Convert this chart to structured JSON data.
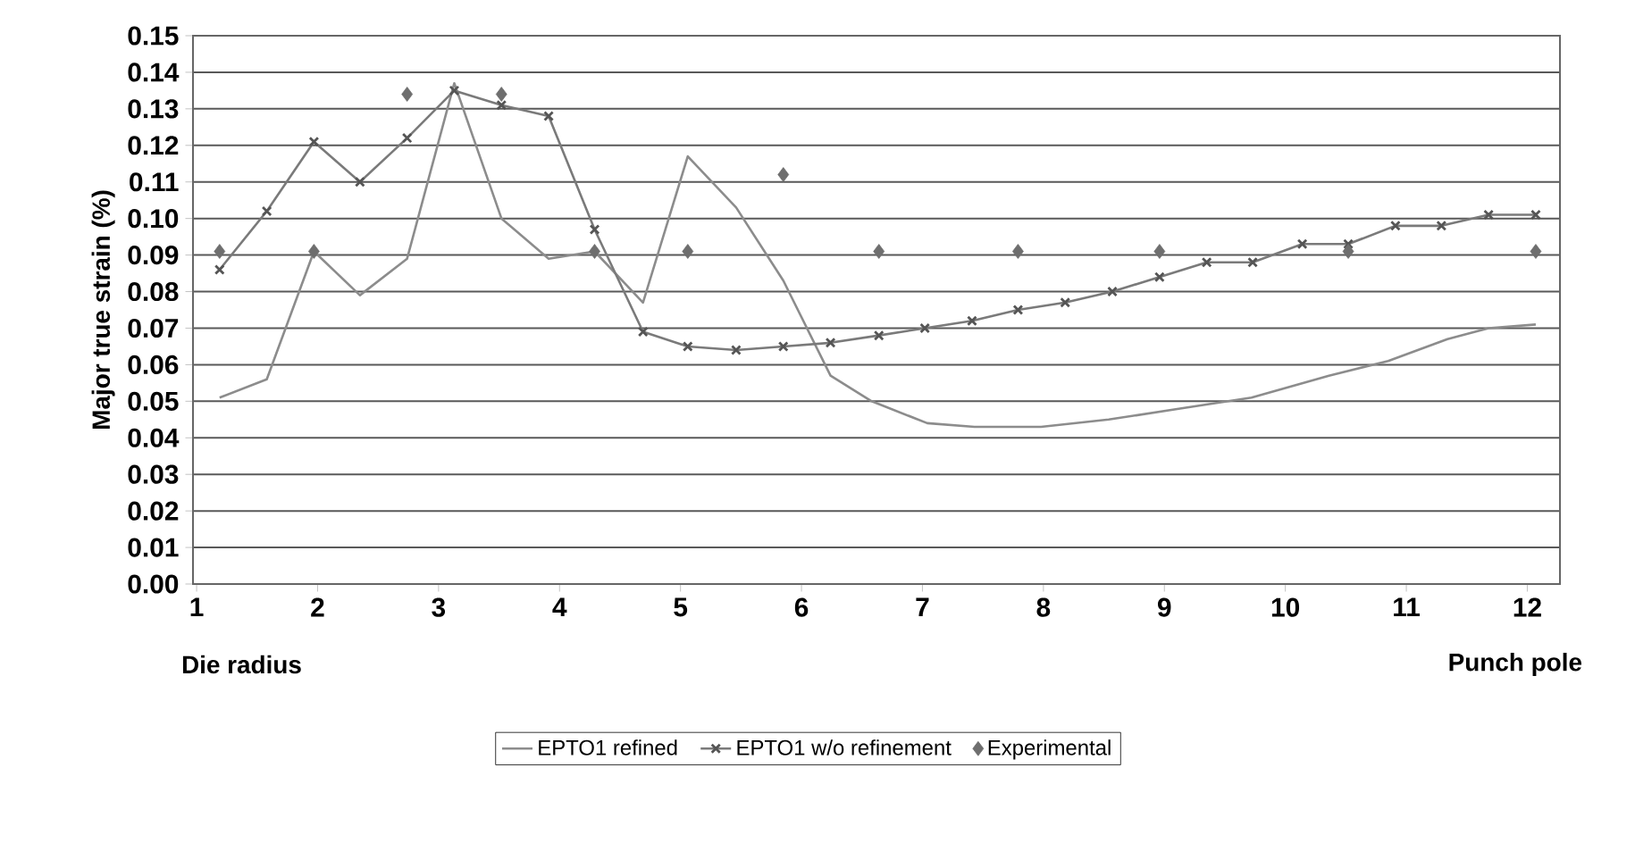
{
  "chart_data": {
    "type": "line",
    "ylabel": "Major true strain (%)",
    "xlim": [
      0.97,
      12.27
    ],
    "xticks": [
      1,
      2,
      3,
      4,
      5,
      6,
      7,
      8,
      9,
      10,
      11,
      12
    ],
    "ylim": [
      0,
      0.15
    ],
    "yticks": [
      {
        "value": 0,
        "label": "0.00"
      },
      {
        "value": 0.01,
        "label": "0.01"
      },
      {
        "value": 0.02,
        "label": "0.02"
      },
      {
        "value": 0.03,
        "label": "0.03"
      },
      {
        "value": 0.04,
        "label": "0.04"
      },
      {
        "value": 0.05,
        "label": "0.05"
      },
      {
        "value": 0.06,
        "label": "0.06"
      },
      {
        "value": 0.07,
        "label": "0.07"
      },
      {
        "value": 0.08,
        "label": "0.08"
      },
      {
        "value": 0.09,
        "label": "0.09"
      },
      {
        "value": 0.1,
        "label": "0.10"
      },
      {
        "value": 0.11,
        "label": "0.11"
      },
      {
        "value": 0.12,
        "label": "0.12"
      },
      {
        "value": 0.13,
        "label": "0.13"
      },
      {
        "value": 0.14,
        "label": "0.14"
      },
      {
        "value": 0.15,
        "label": "0.15"
      }
    ],
    "grid": "y",
    "legend": "bottom",
    "line_style": "solid",
    "annotations": [
      "Die radius",
      "Punch pole"
    ],
    "series": [
      {
        "name": "EPTO1 refined",
        "marker": "none",
        "color": "#8c8c8c",
        "x": [
          1.19,
          1.58,
          1.97,
          2.35,
          2.74,
          3.13,
          3.52,
          3.91,
          4.29,
          4.69,
          5.06,
          5.46,
          5.85,
          6.24,
          6.58,
          7.04,
          7.43,
          7.98,
          8.54,
          9.13,
          9.72,
          10.36,
          10.85,
          11.34,
          11.68,
          12.07
        ],
        "values": [
          0.051,
          0.056,
          0.091,
          0.079,
          0.089,
          0.137,
          0.1,
          0.089,
          0.091,
          0.077,
          0.117,
          0.103,
          0.083,
          0.057,
          0.05,
          0.044,
          0.043,
          0.043,
          0.045,
          0.048,
          0.051,
          0.057,
          0.061,
          0.067,
          0.07,
          0.071
        ]
      },
      {
        "name": "EPTO1 w/o refinement",
        "marker": "cross",
        "color": "#7a7a7a",
        "x": [
          1.19,
          1.58,
          1.97,
          2.35,
          2.74,
          3.13,
          3.52,
          3.91,
          4.29,
          4.69,
          5.06,
          5.46,
          5.85,
          6.24,
          6.64,
          7.02,
          7.41,
          7.79,
          8.18,
          8.57,
          8.96,
          9.35,
          9.73,
          10.14,
          10.52,
          10.91,
          11.29,
          11.68,
          12.07
        ],
        "values": [
          0.086,
          0.102,
          0.121,
          0.11,
          0.122,
          0.135,
          0.131,
          0.128,
          0.097,
          0.069,
          0.065,
          0.064,
          0.065,
          0.066,
          0.068,
          0.07,
          0.072,
          0.075,
          0.077,
          0.08,
          0.084,
          0.088,
          0.088,
          0.093,
          0.093,
          0.098,
          0.098,
          0.101,
          0.101
        ]
      },
      {
        "name": "Experimental",
        "type": "scatter",
        "marker": "diamond",
        "color": "#6e6e6e",
        "x": [
          1.19,
          1.97,
          2.74,
          3.52,
          4.29,
          5.06,
          5.85,
          6.64,
          7.79,
          8.96,
          10.52,
          12.07
        ],
        "values": [
          0.091,
          0.091,
          0.134,
          0.134,
          0.091,
          0.091,
          0.112,
          0.091,
          0.091,
          0.091,
          0.091,
          0.091
        ]
      }
    ]
  }
}
